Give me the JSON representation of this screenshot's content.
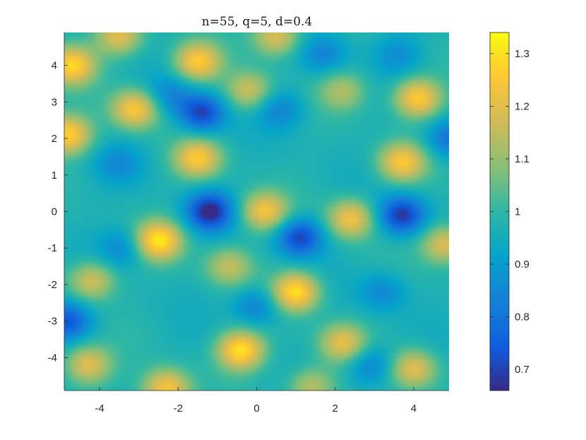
{
  "chart_data": {
    "type": "heatmap",
    "title": "n=55, q=5, d=0.4",
    "xlabel": "",
    "ylabel": "",
    "xlim": [
      -4.9,
      4.9
    ],
    "ylim": [
      -4.9,
      4.9
    ],
    "x_ticks": [
      "-4",
      "-2",
      "0",
      "2",
      "4"
    ],
    "y_ticks": [
      "4",
      "3",
      "2",
      "1",
      "0",
      "-1",
      "-2",
      "-3",
      "-4"
    ],
    "x_tick_values": [
      -4,
      -2,
      0,
      2,
      4
    ],
    "y_tick_values": [
      4,
      3,
      2,
      1,
      0,
      -1,
      -2,
      -3,
      -4
    ],
    "colorbar": {
      "range": [
        0.66,
        1.34
      ],
      "ticks": [
        "1.3",
        "1.2",
        "1.1",
        "1",
        "0.9",
        "0.8",
        "0.7"
      ],
      "tick_values": [
        1.3,
        1.2,
        1.1,
        1.0,
        0.9,
        0.8,
        0.7
      ],
      "colormap": "parula"
    },
    "baseline": 0.97,
    "features": [
      {
        "x": -4.7,
        "y": 4.0,
        "value": 1.27
      },
      {
        "x": -3.5,
        "y": 4.8,
        "value": 1.2
      },
      {
        "x": -1.5,
        "y": 4.1,
        "value": 1.25
      },
      {
        "x": 0.5,
        "y": 4.8,
        "value": 1.2
      },
      {
        "x": -0.2,
        "y": 3.3,
        "value": 1.17
      },
      {
        "x": 2.2,
        "y": 3.3,
        "value": 1.12
      },
      {
        "x": 4.1,
        "y": 3.1,
        "value": 1.27
      },
      {
        "x": -3.1,
        "y": 2.8,
        "value": 1.25
      },
      {
        "x": -4.8,
        "y": 2.1,
        "value": 1.27
      },
      {
        "x": -1.5,
        "y": 1.45,
        "value": 1.24
      },
      {
        "x": 3.7,
        "y": 1.35,
        "value": 1.24
      },
      {
        "x": 0.2,
        "y": 0.0,
        "value": 1.23
      },
      {
        "x": 2.4,
        "y": -0.2,
        "value": 1.23
      },
      {
        "x": -2.5,
        "y": -0.8,
        "value": 1.3
      },
      {
        "x": 4.8,
        "y": -0.9,
        "value": 1.2
      },
      {
        "x": -4.2,
        "y": -1.9,
        "value": 1.18
      },
      {
        "x": -0.7,
        "y": -1.5,
        "value": 1.15
      },
      {
        "x": 1.0,
        "y": -2.2,
        "value": 1.3
      },
      {
        "x": 2.2,
        "y": -3.6,
        "value": 1.2
      },
      {
        "x": -0.4,
        "y": -3.8,
        "value": 1.3
      },
      {
        "x": -4.3,
        "y": -4.2,
        "value": 1.2
      },
      {
        "x": -2.3,
        "y": -4.85,
        "value": 1.25
      },
      {
        "x": 4.0,
        "y": -4.3,
        "value": 1.2
      },
      {
        "x": 1.4,
        "y": -4.8,
        "value": 1.15
      },
      {
        "x": -2.2,
        "y": 3.2,
        "value": 0.85
      },
      {
        "x": -1.4,
        "y": 2.7,
        "value": 0.7
      },
      {
        "x": 0.6,
        "y": 2.8,
        "value": 0.84
      },
      {
        "x": -1.2,
        "y": 0.0,
        "value": 0.66
      },
      {
        "x": 1.1,
        "y": -0.7,
        "value": 0.7
      },
      {
        "x": 3.7,
        "y": -0.1,
        "value": 0.68
      },
      {
        "x": 4.9,
        "y": 2.0,
        "value": 0.8
      },
      {
        "x": -4.8,
        "y": -3.0,
        "value": 0.74
      },
      {
        "x": -3.4,
        "y": -1.0,
        "value": 0.85
      },
      {
        "x": 0.0,
        "y": -2.6,
        "value": 0.82
      },
      {
        "x": 3.2,
        "y": -2.2,
        "value": 0.85
      },
      {
        "x": 1.7,
        "y": 4.3,
        "value": 0.84
      },
      {
        "x": 3.6,
        "y": 4.3,
        "value": 0.87
      },
      {
        "x": 2.9,
        "y": -4.2,
        "value": 0.82
      },
      {
        "x": -3.5,
        "y": 1.3,
        "value": 0.87
      }
    ]
  }
}
